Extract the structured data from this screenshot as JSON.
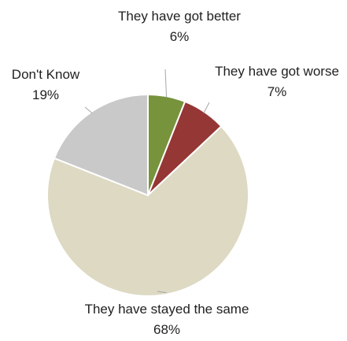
{
  "chart_data": {
    "type": "pie",
    "title": "",
    "slices": [
      {
        "label": "They have got better",
        "value": 6,
        "value_label": "6%",
        "color": "#77933c"
      },
      {
        "label": "They have got worse",
        "value": 7,
        "value_label": "7%",
        "color": "#953735"
      },
      {
        "label": "They have stayed the same",
        "value": 68,
        "value_label": "68%",
        "color": "#ddd9c3"
      },
      {
        "label": "Don't Know",
        "value": 19,
        "value_label": "19%",
        "color": "#c9c9c9"
      }
    ],
    "legend": "none",
    "data_labels": "outside with leader lines"
  }
}
